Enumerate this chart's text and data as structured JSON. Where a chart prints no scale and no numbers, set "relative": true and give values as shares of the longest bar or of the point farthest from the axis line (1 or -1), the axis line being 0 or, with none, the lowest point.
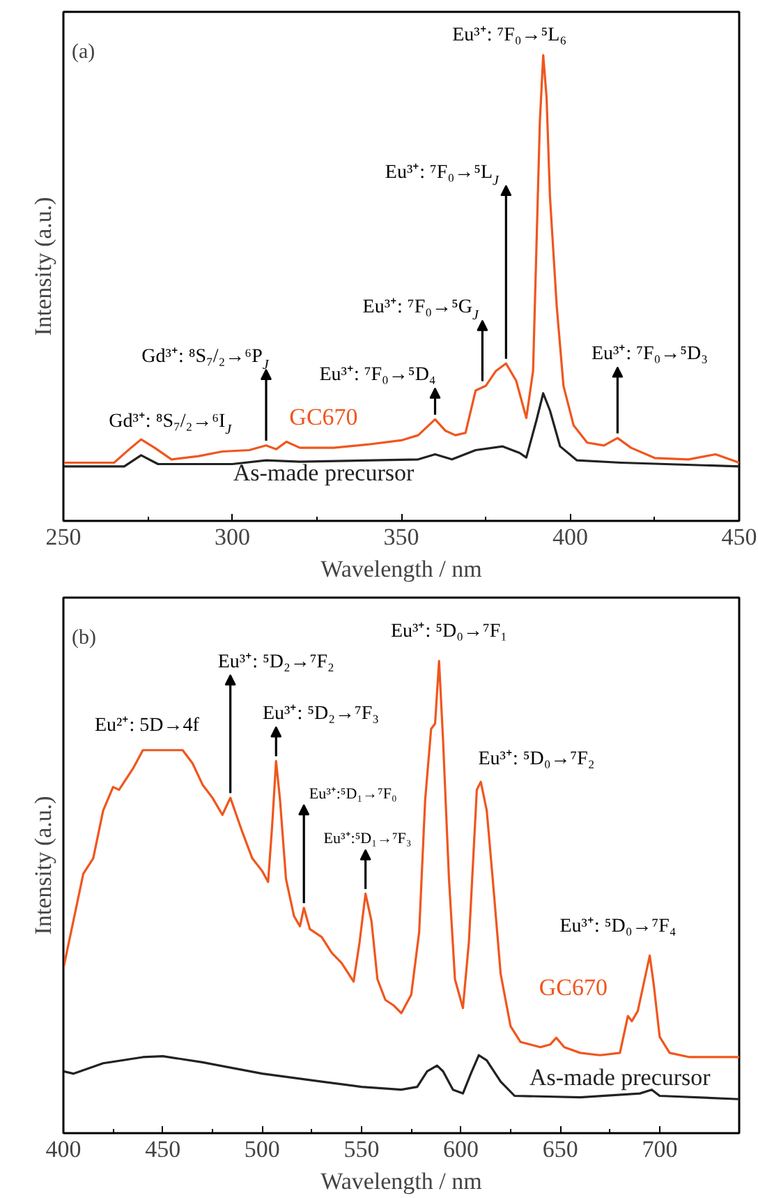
{
  "chart_data": [
    {
      "type": "line",
      "title": "(a)",
      "xlabel": "Wavelength / nm",
      "ylabel": "Intensity (a.u.)",
      "relative": true,
      "xlim": [
        250,
        450
      ],
      "xticks": [
        250,
        300,
        350,
        400,
        450
      ],
      "series": [
        {
          "name": "GC670",
          "color": "#f0561d",
          "x": [
            250,
            265,
            270,
            273,
            277,
            282,
            290,
            297,
            305,
            310,
            313,
            316,
            320,
            330,
            340,
            350,
            355,
            360,
            363,
            366,
            369,
            372,
            375,
            378,
            381,
            384,
            387,
            389,
            390,
            391,
            392,
            393,
            394,
            396,
            398,
            401,
            405,
            410,
            414,
            418,
            425,
            435,
            443,
            450
          ],
          "values": [
            0.125,
            0.125,
            0.157,
            0.175,
            0.157,
            0.132,
            0.139,
            0.149,
            0.152,
            0.162,
            0.154,
            0.17,
            0.157,
            0.157,
            0.164,
            0.173,
            0.184,
            0.218,
            0.194,
            0.184,
            0.189,
            0.28,
            0.29,
            0.322,
            0.338,
            0.301,
            0.221,
            0.322,
            0.589,
            0.856,
            1.0,
            0.909,
            0.696,
            0.461,
            0.29,
            0.205,
            0.168,
            0.162,
            0.178,
            0.157,
            0.135,
            0.132,
            0.143,
            0.125
          ]
        },
        {
          "name": "As-made precursor",
          "color": "#222222",
          "x": [
            250,
            268,
            273,
            278,
            300,
            310,
            320,
            355,
            360,
            365,
            372,
            380,
            385,
            387,
            390,
            392,
            394,
            397,
            402,
            415,
            450
          ],
          "values": [
            0.117,
            0.117,
            0.141,
            0.122,
            0.122,
            0.13,
            0.127,
            0.132,
            0.143,
            0.132,
            0.152,
            0.16,
            0.146,
            0.136,
            0.216,
            0.274,
            0.237,
            0.16,
            0.13,
            0.125,
            0.117
          ]
        }
      ],
      "annotations": [
        {
          "text": "Gd³⁺: ⁸S₇/₂→⁶I$_{J}$",
          "x": 273,
          "y": 0.175
        },
        {
          "text": "Gd³⁺: ⁸S₇/₂→⁶P$_{J}$",
          "x": 310,
          "y": 0.162
        },
        {
          "text": "Eu³⁺: ⁷F₀→⁵D₄",
          "x": 360,
          "y": 0.218
        },
        {
          "text": "Eu³⁺: ⁷F₀→⁵G$_{J}$",
          "x": 374,
          "y": 0.29
        },
        {
          "text": "Eu³⁺: ⁷F₀→⁵L$_{J}$",
          "x": 381,
          "y": 0.338
        },
        {
          "text": "Eu³⁺: ⁷F₀→⁵L₆",
          "x": 392,
          "y": 1.0
        },
        {
          "text": "Eu³⁺: ⁷F₀→⁵D₃",
          "x": 414,
          "y": 0.178
        }
      ]
    },
    {
      "type": "line",
      "title": "(b)",
      "xlabel": "Wavelength / nm",
      "ylabel": "Intensity (a.u.)",
      "relative": true,
      "xlim": [
        400,
        740
      ],
      "xticks": [
        400,
        450,
        500,
        550,
        600,
        650,
        700
      ],
      "series": [
        {
          "name": "GC670",
          "color": "#f0561d",
          "x": [
            400,
            405,
            410,
            415,
            420,
            425,
            428,
            435,
            440,
            450,
            460,
            465,
            470,
            475,
            480,
            484,
            490,
            495,
            500,
            503,
            505,
            507,
            509,
            512,
            516,
            519,
            521,
            524,
            530,
            535,
            540,
            546,
            549,
            552,
            555,
            558,
            562,
            566,
            570,
            575,
            579,
            582,
            585,
            587,
            589,
            591,
            594,
            597,
            601,
            604,
            608,
            610,
            613,
            616,
            620,
            625,
            630,
            640,
            645,
            648,
            652,
            660,
            670,
            680,
            684,
            686,
            689,
            693,
            695,
            697,
            700,
            705,
            715,
            740
          ],
          "values": [
            0.349,
            0.449,
            0.549,
            0.582,
            0.683,
            0.733,
            0.727,
            0.772,
            0.811,
            0.811,
            0.811,
            0.783,
            0.738,
            0.71,
            0.674,
            0.71,
            0.638,
            0.582,
            0.555,
            0.532,
            0.649,
            0.788,
            0.705,
            0.538,
            0.46,
            0.438,
            0.477,
            0.432,
            0.415,
            0.382,
            0.36,
            0.321,
            0.404,
            0.507,
            0.449,
            0.326,
            0.282,
            0.271,
            0.254,
            0.293,
            0.426,
            0.705,
            0.856,
            0.867,
            1.0,
            0.833,
            0.538,
            0.326,
            0.265,
            0.404,
            0.727,
            0.744,
            0.683,
            0.538,
            0.337,
            0.226,
            0.193,
            0.182,
            0.188,
            0.202,
            0.182,
            0.17,
            0.165,
            0.17,
            0.248,
            0.237,
            0.259,
            0.337,
            0.376,
            0.315,
            0.204,
            0.17,
            0.161,
            0.161
          ]
        },
        {
          "name": "As-made precursor",
          "color": "#222222",
          "x": [
            400,
            405,
            420,
            440,
            450,
            470,
            500,
            530,
            550,
            570,
            578,
            583,
            588,
            591,
            596,
            601,
            605,
            609,
            613,
            620,
            627,
            660,
            690,
            696,
            700,
            740
          ],
          "values": [
            0.131,
            0.126,
            0.148,
            0.161,
            0.163,
            0.15,
            0.126,
            0.109,
            0.098,
            0.092,
            0.098,
            0.131,
            0.143,
            0.131,
            0.092,
            0.084,
            0.126,
            0.165,
            0.154,
            0.109,
            0.079,
            0.076,
            0.084,
            0.092,
            0.079,
            0.072
          ]
        }
      ],
      "annotations": [
        {
          "text": "Eu²⁺: 5D→4f",
          "x": 450,
          "y": 0.811
        },
        {
          "text": "Eu³⁺: ⁵D₂→⁷F₂",
          "x": 484,
          "y": 0.71
        },
        {
          "text": "Eu³⁺: ⁵D₂→⁷F₃",
          "x": 507,
          "y": 0.788
        },
        {
          "text": "Eu³⁺:⁵D₁→⁷F₀",
          "x": 521,
          "y": 0.477
        },
        {
          "text": "Eu³⁺:⁵D₁→⁷F₃",
          "x": 552,
          "y": 0.507
        },
        {
          "text": "Eu³⁺: ⁵D₀→⁷F₁",
          "x": 589,
          "y": 1.0
        },
        {
          "text": "Eu³⁺: ⁵D₀→⁷F₂",
          "x": 610,
          "y": 0.744
        },
        {
          "text": "Eu³⁺: ⁵D₀→⁷F₄",
          "x": 695,
          "y": 0.376
        }
      ]
    }
  ]
}
